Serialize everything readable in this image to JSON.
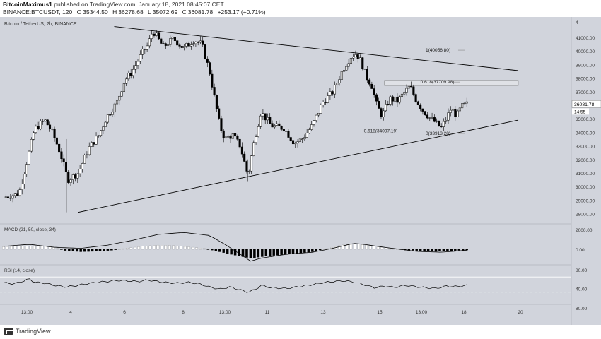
{
  "header": {
    "author": "BitcoinMaximus1",
    "published_text": "published on TradingView.com, January 18, 2021 08:45:07 CET",
    "symbol": "BINANCE:BTCUSDT, 120",
    "o_label": "O",
    "o_value": "35344.50",
    "h_label": "H",
    "h_value": "36278.68",
    "l_label": "L",
    "l_value": "35072.69",
    "c_label": "C",
    "c_value": "36081.78",
    "change_last": "36081.78",
    "change": "+253.17 (+0.71%)"
  },
  "colors": {
    "background": "#d1d4dc",
    "candle_up": "#ffffff",
    "candle_down": "#000000",
    "line": "#000000"
  },
  "chart_data": [
    {
      "type": "candlestick",
      "title": "Bitcoin / TetherUS, 2h, BINANCE",
      "ylim": [
        27300,
        42300
      ],
      "y_ticks": [
        28000,
        29000,
        30000,
        31000,
        32000,
        33000,
        34000,
        35000,
        36000,
        37000,
        38000,
        39000,
        40000,
        41000
      ],
      "y_tick_labels": [
        "28000.00",
        "29000.00",
        "30000.00",
        "31000.00",
        "32000.00",
        "33000.00",
        "34000.00",
        "35000.00",
        "36000.00",
        "37000.00",
        "38000.00",
        "39000.00",
        "40000.00",
        "41000.00"
      ],
      "top_tick_label": "4",
      "last_price": "36081.78",
      "countdown": "14:55",
      "x_ticks": [
        "13:00",
        "4",
        "6",
        "8",
        "13:00",
        "11",
        "13",
        "15",
        "13:00",
        "18",
        "20"
      ],
      "annotations": [
        {
          "text": "1(40056.80)",
          "price": 40056.8
        },
        {
          "text": "0.618(37709.98)",
          "price": 37709.98
        },
        {
          "text": "0.618(34097.19)",
          "price": 34097.19
        },
        {
          "text": "0(33913.28)",
          "price": 33913.28
        }
      ],
      "trendlines": [
        {
          "from": [
            0.0,
            28100
          ],
          "to": [
            1.0,
            34900
          ]
        },
        {
          "from": [
            0.215,
            41800
          ],
          "to": [
            1.0,
            38550
          ]
        }
      ],
      "zone": {
        "low": 37450,
        "high": 37830
      },
      "close_path": [
        [
          0.0,
          29200
        ],
        [
          0.03,
          29500
        ],
        [
          0.045,
          31800
        ],
        [
          0.06,
          34200
        ],
        [
          0.08,
          34900
        ],
        [
          0.095,
          34000
        ],
        [
          0.11,
          32500
        ],
        [
          0.125,
          30500
        ],
        [
          0.145,
          31000
        ],
        [
          0.165,
          32800
        ],
        [
          0.185,
          33800
        ],
        [
          0.2,
          35100
        ],
        [
          0.22,
          36200
        ],
        [
          0.235,
          37800
        ],
        [
          0.25,
          38500
        ],
        [
          0.27,
          39900
        ],
        [
          0.28,
          40400
        ],
        [
          0.29,
          41500
        ],
        [
          0.31,
          40300
        ],
        [
          0.33,
          40900
        ],
        [
          0.35,
          40200
        ],
        [
          0.37,
          40800
        ],
        [
          0.385,
          40500
        ],
        [
          0.4,
          38500
        ],
        [
          0.41,
          36500
        ],
        [
          0.42,
          34500
        ],
        [
          0.43,
          33500
        ],
        [
          0.445,
          33800
        ],
        [
          0.46,
          33000
        ],
        [
          0.47,
          31500
        ],
        [
          0.475,
          30800
        ],
        [
          0.485,
          33000
        ],
        [
          0.5,
          35500
        ],
        [
          0.52,
          34500
        ],
        [
          0.545,
          34300
        ],
        [
          0.565,
          33200
        ],
        [
          0.58,
          33500
        ],
        [
          0.6,
          34500
        ],
        [
          0.62,
          36200
        ],
        [
          0.64,
          37000
        ],
        [
          0.66,
          38700
        ],
        [
          0.675,
          39600
        ],
        [
          0.685,
          39800
        ],
        [
          0.695,
          39200
        ],
        [
          0.705,
          38100
        ],
        [
          0.715,
          37500
        ],
        [
          0.725,
          36000
        ],
        [
          0.735,
          35200
        ],
        [
          0.75,
          36500
        ],
        [
          0.765,
          36300
        ],
        [
          0.78,
          37000
        ],
        [
          0.79,
          37400
        ],
        [
          0.8,
          36500
        ],
        [
          0.815,
          35600
        ],
        [
          0.83,
          35000
        ],
        [
          0.84,
          34700
        ],
        [
          0.85,
          34300
        ],
        [
          0.86,
          35000
        ],
        [
          0.87,
          35800
        ],
        [
          0.88,
          35200
        ],
        [
          0.89,
          35900
        ],
        [
          0.9,
          36081
        ]
      ]
    },
    {
      "type": "macd",
      "title": "MACD (21, 50, close, 34)",
      "y_tick_labels": [
        "2000.00",
        "0.00"
      ],
      "ylim": [
        -1500,
        2500
      ],
      "macd_line": [
        [
          0.0,
          300
        ],
        [
          0.05,
          500
        ],
        [
          0.1,
          200
        ],
        [
          0.15,
          100
        ],
        [
          0.2,
          400
        ],
        [
          0.25,
          900
        ],
        [
          0.3,
          1500
        ],
        [
          0.35,
          1700
        ],
        [
          0.4,
          1400
        ],
        [
          0.43,
          500
        ],
        [
          0.46,
          -500
        ],
        [
          0.48,
          -1200
        ],
        [
          0.5,
          -900
        ],
        [
          0.55,
          -500
        ],
        [
          0.6,
          -300
        ],
        [
          0.64,
          100
        ],
        [
          0.68,
          600
        ],
        [
          0.7,
          500
        ],
        [
          0.74,
          200
        ],
        [
          0.8,
          -200
        ],
        [
          0.85,
          -300
        ],
        [
          0.9,
          -100
        ]
      ],
      "histogram": [
        [
          0.0,
          250
        ],
        [
          0.03,
          320
        ],
        [
          0.06,
          350
        ],
        [
          0.09,
          280
        ],
        [
          0.12,
          -120
        ],
        [
          0.15,
          -250
        ],
        [
          0.18,
          -200
        ],
        [
          0.21,
          -100
        ],
        [
          0.24,
          120
        ],
        [
          0.27,
          300
        ],
        [
          0.3,
          420
        ],
        [
          0.33,
          380
        ],
        [
          0.36,
          250
        ],
        [
          0.39,
          80
        ],
        [
          0.42,
          -250
        ],
        [
          0.45,
          -600
        ],
        [
          0.48,
          -900
        ],
        [
          0.51,
          -700
        ],
        [
          0.54,
          -550
        ],
        [
          0.57,
          -400
        ],
        [
          0.6,
          -250
        ],
        [
          0.63,
          100
        ],
        [
          0.66,
          450
        ],
        [
          0.69,
          550
        ],
        [
          0.72,
          300
        ],
        [
          0.75,
          100
        ],
        [
          0.78,
          -80
        ],
        [
          0.81,
          -150
        ],
        [
          0.84,
          -220
        ],
        [
          0.87,
          -150
        ],
        [
          0.9,
          -80
        ]
      ]
    },
    {
      "type": "rsi",
      "title": "RSI (14, close)",
      "y_tick_labels": [
        "80.00",
        "40.00",
        "80.00"
      ],
      "ylim": [
        0,
        100
      ],
      "rsi_line": [
        [
          0.0,
          55
        ],
        [
          0.02,
          52
        ],
        [
          0.04,
          60
        ],
        [
          0.05,
          65
        ],
        [
          0.06,
          56
        ],
        [
          0.08,
          54
        ],
        [
          0.1,
          48
        ],
        [
          0.12,
          44
        ],
        [
          0.14,
          47
        ],
        [
          0.16,
          52
        ],
        [
          0.18,
          56
        ],
        [
          0.2,
          58
        ],
        [
          0.22,
          61
        ],
        [
          0.24,
          60
        ],
        [
          0.26,
          58
        ],
        [
          0.28,
          62
        ],
        [
          0.3,
          58
        ],
        [
          0.32,
          55
        ],
        [
          0.34,
          54
        ],
        [
          0.36,
          56
        ],
        [
          0.38,
          52
        ],
        [
          0.4,
          44
        ],
        [
          0.42,
          38
        ],
        [
          0.44,
          44
        ],
        [
          0.46,
          36
        ],
        [
          0.475,
          30
        ],
        [
          0.49,
          38
        ],
        [
          0.5,
          48
        ],
        [
          0.52,
          42
        ],
        [
          0.55,
          40
        ],
        [
          0.58,
          46
        ],
        [
          0.6,
          50
        ],
        [
          0.62,
          55
        ],
        [
          0.64,
          58
        ],
        [
          0.66,
          60
        ],
        [
          0.68,
          57
        ],
        [
          0.7,
          50
        ],
        [
          0.72,
          42
        ],
        [
          0.74,
          46
        ],
        [
          0.76,
          43
        ],
        [
          0.78,
          48
        ],
        [
          0.8,
          45
        ],
        [
          0.82,
          42
        ],
        [
          0.84,
          40
        ],
        [
          0.86,
          46
        ],
        [
          0.88,
          45
        ],
        [
          0.9,
          48
        ]
      ]
    }
  ],
  "footer": {
    "brand": "TradingView"
  }
}
